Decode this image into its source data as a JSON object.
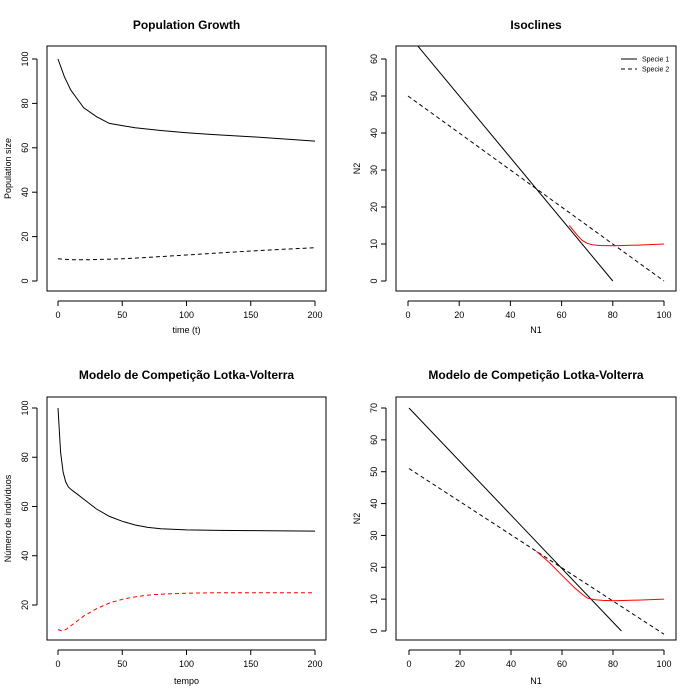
{
  "chart_data": [
    {
      "type": "line",
      "title": "Population Growth",
      "xlabel": "time (t)",
      "ylabel": "Population size",
      "xlim": [
        0,
        200
      ],
      "ylim": [
        0,
        100
      ],
      "xticks": [
        0,
        50,
        100,
        150,
        200
      ],
      "yticks": [
        0,
        20,
        40,
        60,
        80,
        100
      ],
      "series": [
        {
          "style": "solid",
          "color": "#000000",
          "x": [
            0,
            5,
            10,
            15,
            20,
            30,
            40,
            50,
            60,
            80,
            100,
            120,
            150,
            200
          ],
          "y": [
            100,
            92,
            86,
            82,
            78,
            74,
            71,
            70,
            69,
            67.8,
            66.8,
            66,
            65,
            63
          ]
        },
        {
          "style": "dashed",
          "color": "#000000",
          "x": [
            0,
            10,
            25,
            50,
            75,
            100,
            125,
            150,
            175,
            200
          ],
          "y": [
            10,
            9.6,
            9.6,
            10,
            10.8,
            11.7,
            12.6,
            13.5,
            14.3,
            15
          ]
        }
      ]
    },
    {
      "type": "line",
      "title": "Isoclines",
      "xlabel": "N1",
      "ylabel": "N2",
      "xlim": [
        0,
        100
      ],
      "ylim": [
        0,
        66.7
      ],
      "xticks": [
        0,
        20,
        40,
        60,
        80,
        100
      ],
      "yticks": [
        0,
        10,
        20,
        30,
        40,
        50,
        60
      ],
      "legend": {
        "position": "top-right",
        "entries": [
          {
            "label": "Specie 1",
            "style": "solid"
          },
          {
            "label": "Specie 2",
            "style": "dashed"
          }
        ]
      },
      "series": [
        {
          "style": "solid",
          "color": "#000000",
          "x": [
            0,
            80
          ],
          "y": [
            66.7,
            0
          ]
        },
        {
          "style": "dashed",
          "color": "#000000",
          "x": [
            0,
            100
          ],
          "y": [
            50,
            0
          ]
        },
        {
          "style": "solid",
          "color": "#ff0000",
          "x": [
            63,
            66,
            68,
            70,
            72,
            75,
            80,
            90,
            100
          ],
          "y": [
            15,
            12.5,
            11,
            10.2,
            9.8,
            9.6,
            9.5,
            9.7,
            10
          ]
        }
      ]
    },
    {
      "type": "line",
      "title": "Modelo de Competição Lotka-Volterra",
      "xlabel": "tempo",
      "ylabel": "Número de indivíduos",
      "xlim": [
        0,
        200
      ],
      "ylim": [
        10,
        100
      ],
      "xticks": [
        0,
        50,
        100,
        150,
        200
      ],
      "yticks": [
        20,
        40,
        60,
        80,
        100
      ],
      "series": [
        {
          "style": "solid",
          "color": "#000000",
          "x": [
            0,
            2,
            4,
            6,
            8,
            10,
            15,
            20,
            30,
            40,
            50,
            60,
            70,
            80,
            100,
            125,
            150,
            200
          ],
          "y": [
            100,
            82,
            74,
            70,
            68,
            67,
            65,
            63,
            59,
            56,
            54,
            52.5,
            51.5,
            51,
            50.5,
            50.3,
            50.2,
            50
          ]
        },
        {
          "style": "dashed",
          "color": "#ff0000",
          "x": [
            0,
            3,
            6,
            10,
            15,
            20,
            30,
            40,
            50,
            60,
            70,
            80,
            100,
            125,
            150,
            200
          ],
          "y": [
            10,
            9.5,
            10,
            11.5,
            13.5,
            15.5,
            18.5,
            20.8,
            22.3,
            23.3,
            24,
            24.4,
            24.8,
            25,
            25,
            25
          ]
        }
      ]
    },
    {
      "type": "line",
      "title": "Modelo de Competição Lotka-Volterra",
      "xlabel": "N1",
      "ylabel": "N2",
      "xlim": [
        0,
        100
      ],
      "ylim": [
        0,
        70
      ],
      "xticks": [
        0,
        20,
        40,
        60,
        80,
        100
      ],
      "yticks": [
        0,
        10,
        20,
        30,
        40,
        50,
        60,
        70
      ],
      "series": [
        {
          "style": "solid",
          "color": "#000000",
          "x": [
            0,
            83.3
          ],
          "y": [
            70,
            0
          ]
        },
        {
          "style": "dashed",
          "color": "#000000",
          "x": [
            0,
            100
          ],
          "y": [
            51,
            -1
          ]
        },
        {
          "style": "solid",
          "color": "#ff0000",
          "x": [
            50,
            55,
            60,
            65,
            68,
            70,
            73,
            76,
            80,
            90,
            100
          ],
          "y": [
            25,
            21.5,
            17.5,
            13.5,
            11.5,
            10.3,
            9.8,
            9.6,
            9.5,
            9.7,
            10
          ]
        }
      ]
    }
  ]
}
